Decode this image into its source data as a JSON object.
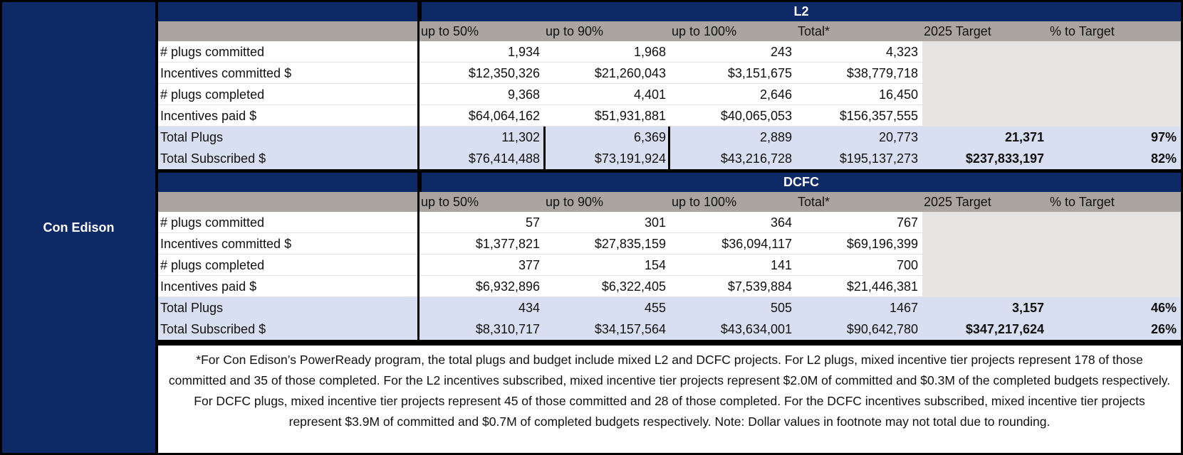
{
  "entity": {
    "name": "Con Edison"
  },
  "l2": {
    "title": "L2",
    "headers": [
      "up to 50%",
      "up to 90%",
      "up to 100%",
      "Total*",
      "2025 Target",
      "% to Target"
    ],
    "rows": [
      {
        "label": "# plugs committed",
        "values": [
          "1,934",
          "1,968",
          "243",
          "4,323"
        ]
      },
      {
        "label": "Incentives committed $",
        "values": [
          "$12,350,326",
          "$21,260,043",
          "$3,151,675",
          "$38,779,718"
        ]
      },
      {
        "label": "# plugs completed",
        "values": [
          "9,368",
          "4,401",
          "2,646",
          "16,450"
        ]
      },
      {
        "label": "Incentives paid $",
        "values": [
          "$64,064,162",
          "$51,931,881",
          "$40,065,053",
          "$156,357,555"
        ]
      }
    ],
    "totals": [
      {
        "label": "Total Plugs",
        "values": [
          "11,302",
          "6,369",
          "2,889",
          "20,773"
        ],
        "target": "21,371",
        "pct": "97%"
      },
      {
        "label": "Total Subscribed $",
        "values": [
          "$76,414,488",
          "$73,191,924",
          "$43,216,728",
          "$195,137,273"
        ],
        "target": "$237,833,197",
        "pct": "82%"
      }
    ]
  },
  "dcfc": {
    "title": "DCFC",
    "headers": [
      "up to 50%",
      "up to 90%",
      "up to 100%",
      "Total*",
      "2025 Target",
      "% to Target"
    ],
    "rows": [
      {
        "label": "# plugs committed",
        "values": [
          "57",
          "301",
          "364",
          "767"
        ]
      },
      {
        "label": "Incentives committed $",
        "values": [
          "$1,377,821",
          "$27,835,159",
          "$36,094,117",
          "$69,196,399"
        ]
      },
      {
        "label": "# plugs completed",
        "values": [
          "377",
          "154",
          "141",
          "700"
        ]
      },
      {
        "label": "Incentives paid $",
        "values": [
          "$6,932,896",
          "$6,322,405",
          "$7,539,884",
          "$21,446,381"
        ]
      }
    ],
    "totals": [
      {
        "label": "Total Plugs",
        "values": [
          "434",
          "455",
          "505",
          "1467"
        ],
        "target": "3,157",
        "pct": "46%"
      },
      {
        "label": "Total Subscribed $",
        "values": [
          "$8,310,717",
          "$34,157,564",
          "$43,634,001",
          "$90,642,780"
        ],
        "target": "$347,217,624",
        "pct": "26%"
      }
    ]
  },
  "footnote": "*For Con Edison’s PowerReady program, the total plugs and budget include mixed L2 and DCFC projects. For L2 plugs, mixed incentive tier projects represent 178 of those committed and 35 of those completed. For the L2 incentives subscribed, mixed incentive tier projects represent $2.0M of committed and $0.3M of the completed budgets respectively. For DCFC plugs, mixed incentive tier projects represent 45 of those committed and 28 of those completed. For the DCFC incentives subscribed, mixed incentive tier projects represent $3.9M of committed and $0.7M of completed budgets respectively. Note: Dollar values in footnote may not total due to rounding.",
  "colors": {
    "navy": "#0e2a66",
    "header_gray": "#aaa5a0",
    "total_blue": "#d8dff0",
    "target_gray": "#e6e5e3"
  }
}
